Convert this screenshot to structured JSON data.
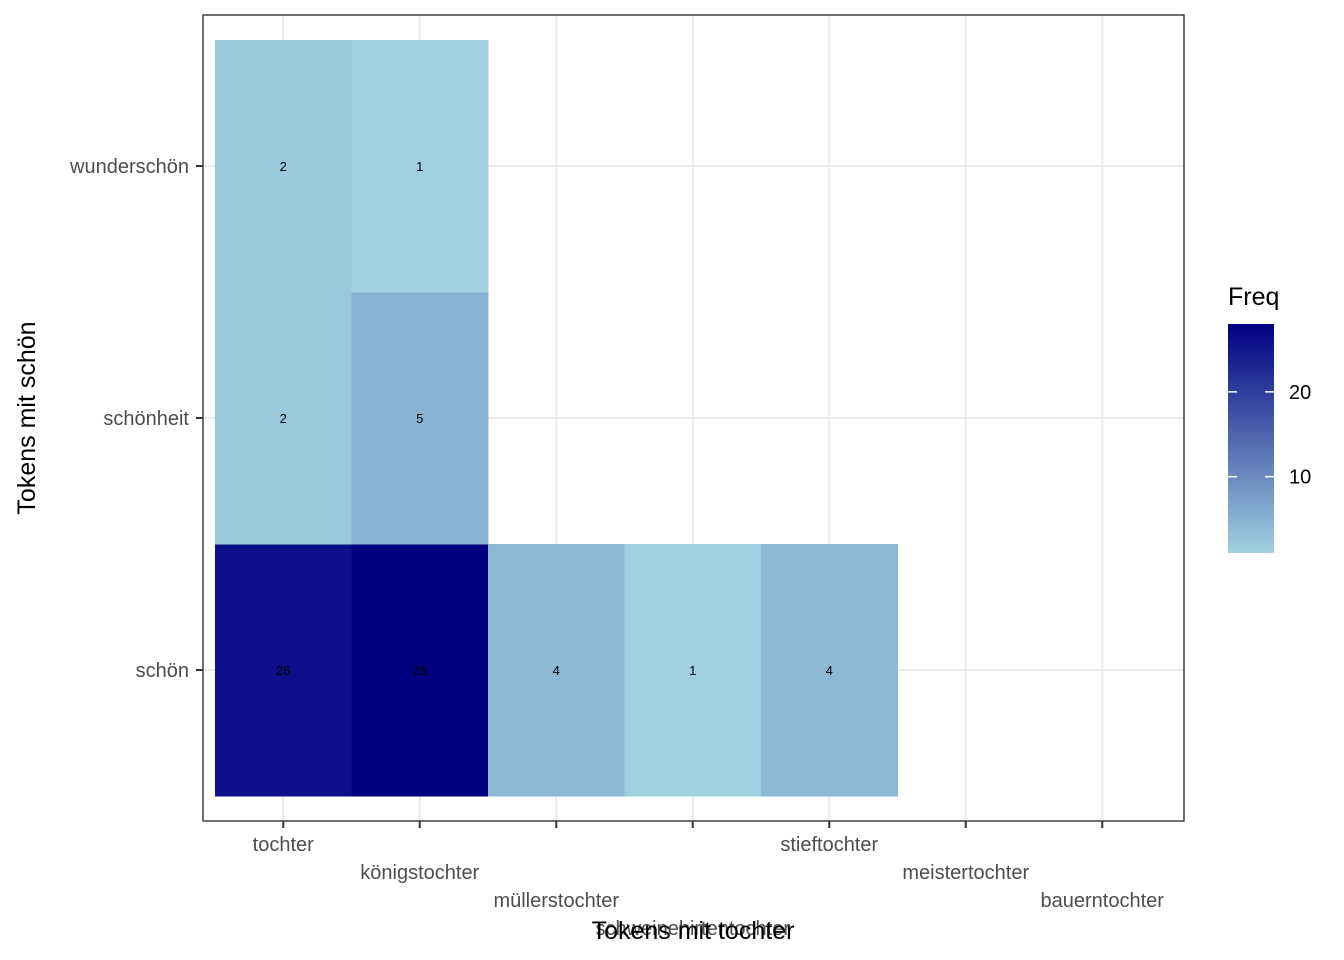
{
  "chart_data": {
    "type": "heatmap",
    "x_categories": [
      "tochter",
      "königstochter",
      "müllerstochter",
      "schweinehirtentochter",
      "stieftochter",
      "meistertochter",
      "bauerntochter"
    ],
    "y_categories": [
      "schön",
      "schönheit",
      "wunderschön"
    ],
    "cells": [
      {
        "x": "tochter",
        "y": "schön",
        "value": 26
      },
      {
        "x": "königstochter",
        "y": "schön",
        "value": 28
      },
      {
        "x": "müllerstochter",
        "y": "schön",
        "value": 4
      },
      {
        "x": "schweinehirtentochter",
        "y": "schön",
        "value": 1
      },
      {
        "x": "stieftochter",
        "y": "schön",
        "value": 4
      },
      {
        "x": "tochter",
        "y": "schönheit",
        "value": 2
      },
      {
        "x": "königstochter",
        "y": "schönheit",
        "value": 5
      },
      {
        "x": "tochter",
        "y": "wunderschön",
        "value": 2
      },
      {
        "x": "königstochter",
        "y": "wunderschön",
        "value": 1
      }
    ],
    "xlabel": "Tokens mit tochter",
    "ylabel": "Tokens mit schön",
    "legend": {
      "title": "Freq",
      "ticks": [
        10,
        20
      ],
      "min": 1,
      "max": 28,
      "low_color": "#a0d0e0",
      "high_color": "#000080",
      "position": "right"
    },
    "grid": true,
    "x_label_dodge": 4
  }
}
